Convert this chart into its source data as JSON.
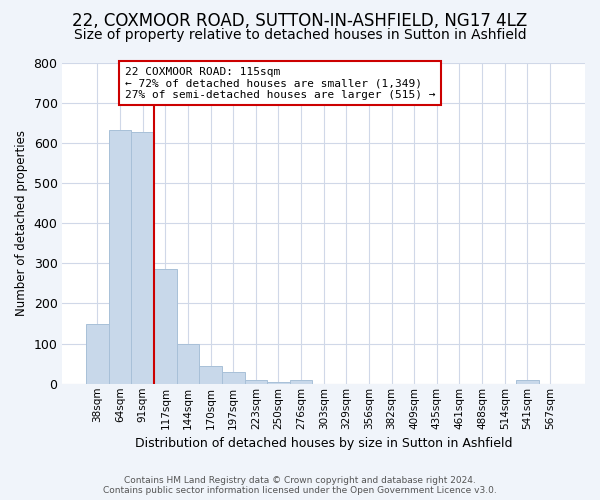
{
  "title1": "22, COXMOOR ROAD, SUTTON-IN-ASHFIELD, NG17 4LZ",
  "title2": "Size of property relative to detached houses in Sutton in Ashfield",
  "xlabel": "Distribution of detached houses by size in Sutton in Ashfield",
  "ylabel": "Number of detached properties",
  "footnote": "Contains HM Land Registry data © Crown copyright and database right 2024.\nContains public sector information licensed under the Open Government Licence v3.0.",
  "bin_labels": [
    "38sqm",
    "64sqm",
    "91sqm",
    "117sqm",
    "144sqm",
    "170sqm",
    "197sqm",
    "223sqm",
    "250sqm",
    "276sqm",
    "303sqm",
    "329sqm",
    "356sqm",
    "382sqm",
    "409sqm",
    "435sqm",
    "461sqm",
    "488sqm",
    "514sqm",
    "541sqm",
    "567sqm"
  ],
  "bar_heights": [
    150,
    633,
    628,
    285,
    100,
    45,
    30,
    10,
    5,
    10,
    0,
    0,
    0,
    0,
    0,
    0,
    0,
    0,
    0,
    10,
    0
  ],
  "bar_color": "#c8d8ea",
  "bar_edge_color": "#a8c0d8",
  "vline_color": "#cc0000",
  "annotation_text": "22 COXMOOR ROAD: 115sqm\n← 72% of detached houses are smaller (1,349)\n27% of semi-detached houses are larger (515) →",
  "annotation_box_color": "#ffffff",
  "annotation_box_edge": "#cc0000",
  "ylim": [
    0,
    800
  ],
  "yticks": [
    0,
    100,
    200,
    300,
    400,
    500,
    600,
    700,
    800
  ],
  "plot_bg_color": "#ffffff",
  "fig_bg_color": "#f0f4fa",
  "grid_color": "#d0d8e8",
  "title1_fontsize": 12,
  "title2_fontsize": 10
}
